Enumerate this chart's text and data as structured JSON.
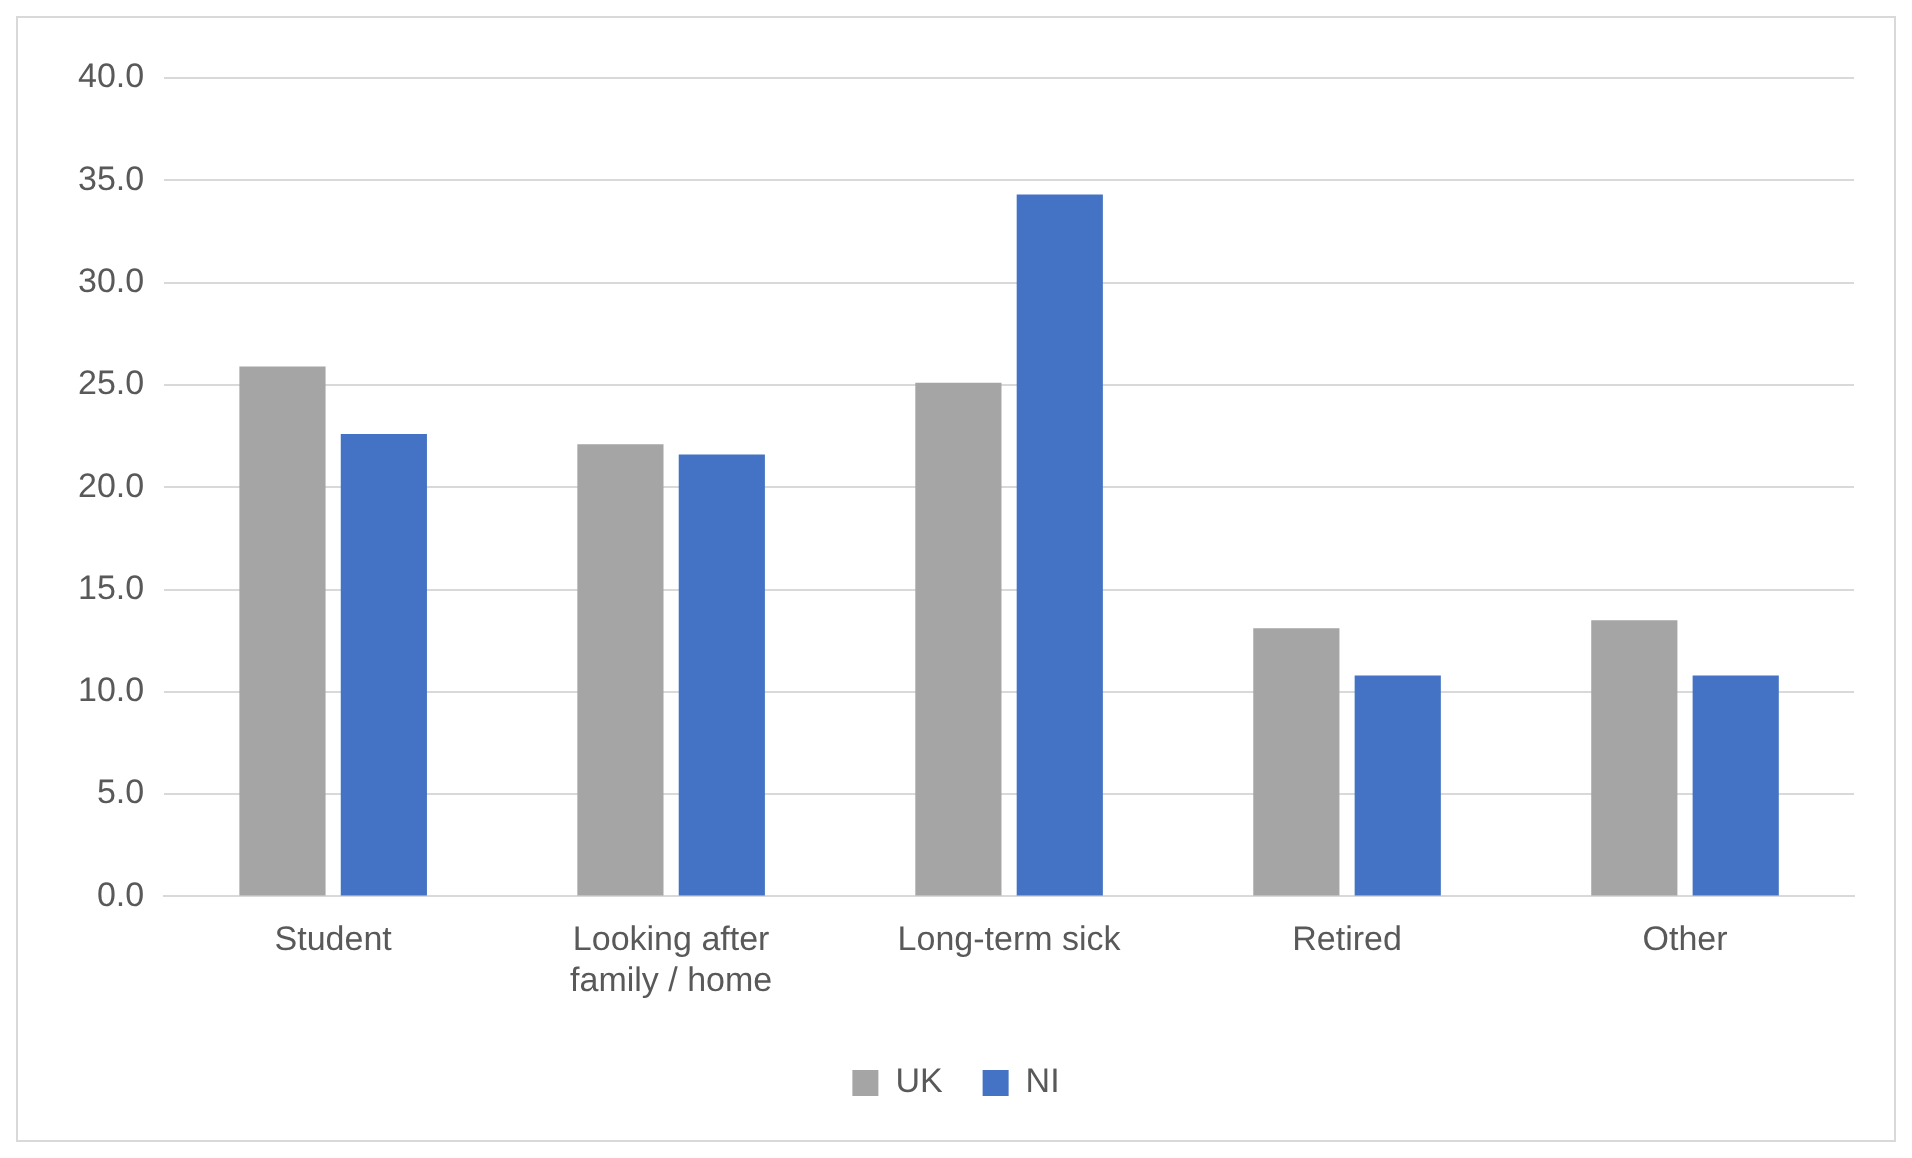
{
  "chart_data": {
    "type": "bar",
    "categories": [
      "Student",
      "Looking after family / home",
      "Long-term sick",
      "Retired",
      "Other"
    ],
    "series": [
      {
        "name": "UK",
        "color": "#a5a5a5",
        "values": [
          25.9,
          22.1,
          25.1,
          13.1,
          13.5
        ]
      },
      {
        "name": "NI",
        "color": "#4472c4",
        "values": [
          22.6,
          21.6,
          34.3,
          10.8,
          10.8
        ]
      }
    ],
    "ylim": [
      0,
      40
    ],
    "yticks": [
      {
        "value": 0,
        "label": "0.0"
      },
      {
        "value": 5,
        "label": "5.0"
      },
      {
        "value": 10,
        "label": "10.0"
      },
      {
        "value": 15,
        "label": "15.0"
      },
      {
        "value": 20,
        "label": "20.0"
      },
      {
        "value": 25,
        "label": "25.0"
      },
      {
        "value": 30,
        "label": "30.0"
      },
      {
        "value": 35,
        "label": "35.0"
      },
      {
        "value": 40,
        "label": "40.0"
      }
    ],
    "grid": "y",
    "legend": "bottom"
  }
}
